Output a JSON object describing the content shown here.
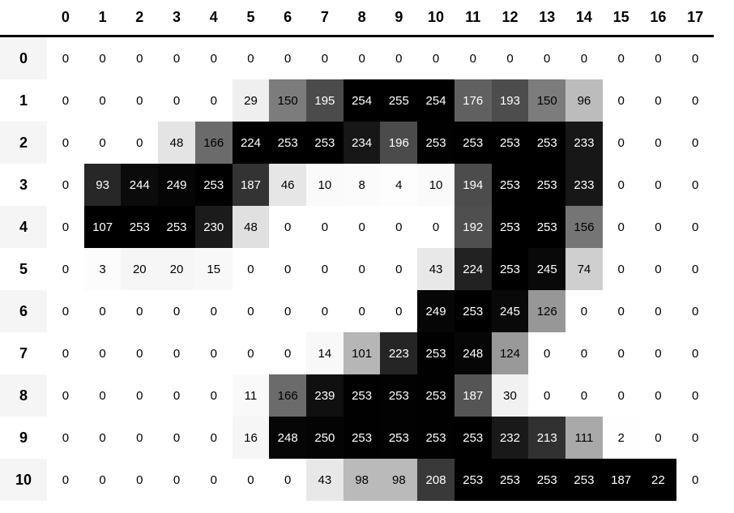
{
  "colors": {
    "background": "#ffffff",
    "row_label_stripe": "#f5f5f5",
    "header_rule": "#000000",
    "cell_text_dark": "#000000",
    "cell_text_light": "#ffffff"
  },
  "chart_data": {
    "type": "heatmap",
    "title": "",
    "x_labels": [
      "0",
      "1",
      "2",
      "3",
      "4",
      "5",
      "6",
      "7",
      "8",
      "9",
      "10",
      "11",
      "12",
      "13",
      "14",
      "15",
      "16",
      "17"
    ],
    "y_labels": [
      "0",
      "1",
      "2",
      "3",
      "4",
      "5",
      "6",
      "7",
      "8",
      "9",
      "10"
    ],
    "matrix": [
      [
        0,
        0,
        0,
        0,
        0,
        0,
        0,
        0,
        0,
        0,
        0,
        0,
        0,
        0,
        0,
        0,
        0,
        0
      ],
      [
        0,
        0,
        0,
        0,
        0,
        29,
        150,
        195,
        254,
        255,
        254,
        176,
        193,
        150,
        96,
        0,
        0,
        0
      ],
      [
        0,
        0,
        0,
        48,
        166,
        224,
        253,
        253,
        234,
        196,
        253,
        253,
        253,
        253,
        233,
        0,
        0,
        0
      ],
      [
        0,
        93,
        244,
        249,
        253,
        187,
        46,
        10,
        8,
        4,
        10,
        194,
        253,
        253,
        233,
        0,
        0,
        0
      ],
      [
        0,
        107,
        253,
        253,
        230,
        48,
        0,
        0,
        0,
        0,
        0,
        192,
        253,
        253,
        156,
        0,
        0,
        0
      ],
      [
        0,
        3,
        20,
        20,
        15,
        0,
        0,
        0,
        0,
        0,
        43,
        224,
        253,
        245,
        74,
        0,
        0,
        0
      ],
      [
        0,
        0,
        0,
        0,
        0,
        0,
        0,
        0,
        0,
        0,
        249,
        253,
        245,
        126,
        0,
        0,
        0,
        0
      ],
      [
        0,
        0,
        0,
        0,
        0,
        0,
        0,
        14,
        101,
        223,
        253,
        248,
        124,
        0,
        0,
        0,
        0,
        0
      ],
      [
        0,
        0,
        0,
        0,
        0,
        11,
        166,
        239,
        253,
        253,
        253,
        187,
        30,
        0,
        0,
        0,
        0,
        0
      ],
      [
        0,
        0,
        0,
        0,
        0,
        16,
        248,
        250,
        253,
        253,
        253,
        253,
        232,
        213,
        111,
        2,
        0,
        0
      ],
      [
        0,
        0,
        0,
        0,
        0,
        0,
        0,
        43,
        98,
        98,
        208,
        253,
        253,
        253,
        253,
        187,
        22,
        0
      ]
    ],
    "value_range": [
      0,
      255
    ],
    "colormap": "Greys",
    "normalization": "per-column-max",
    "grid": false,
    "legend": false
  }
}
